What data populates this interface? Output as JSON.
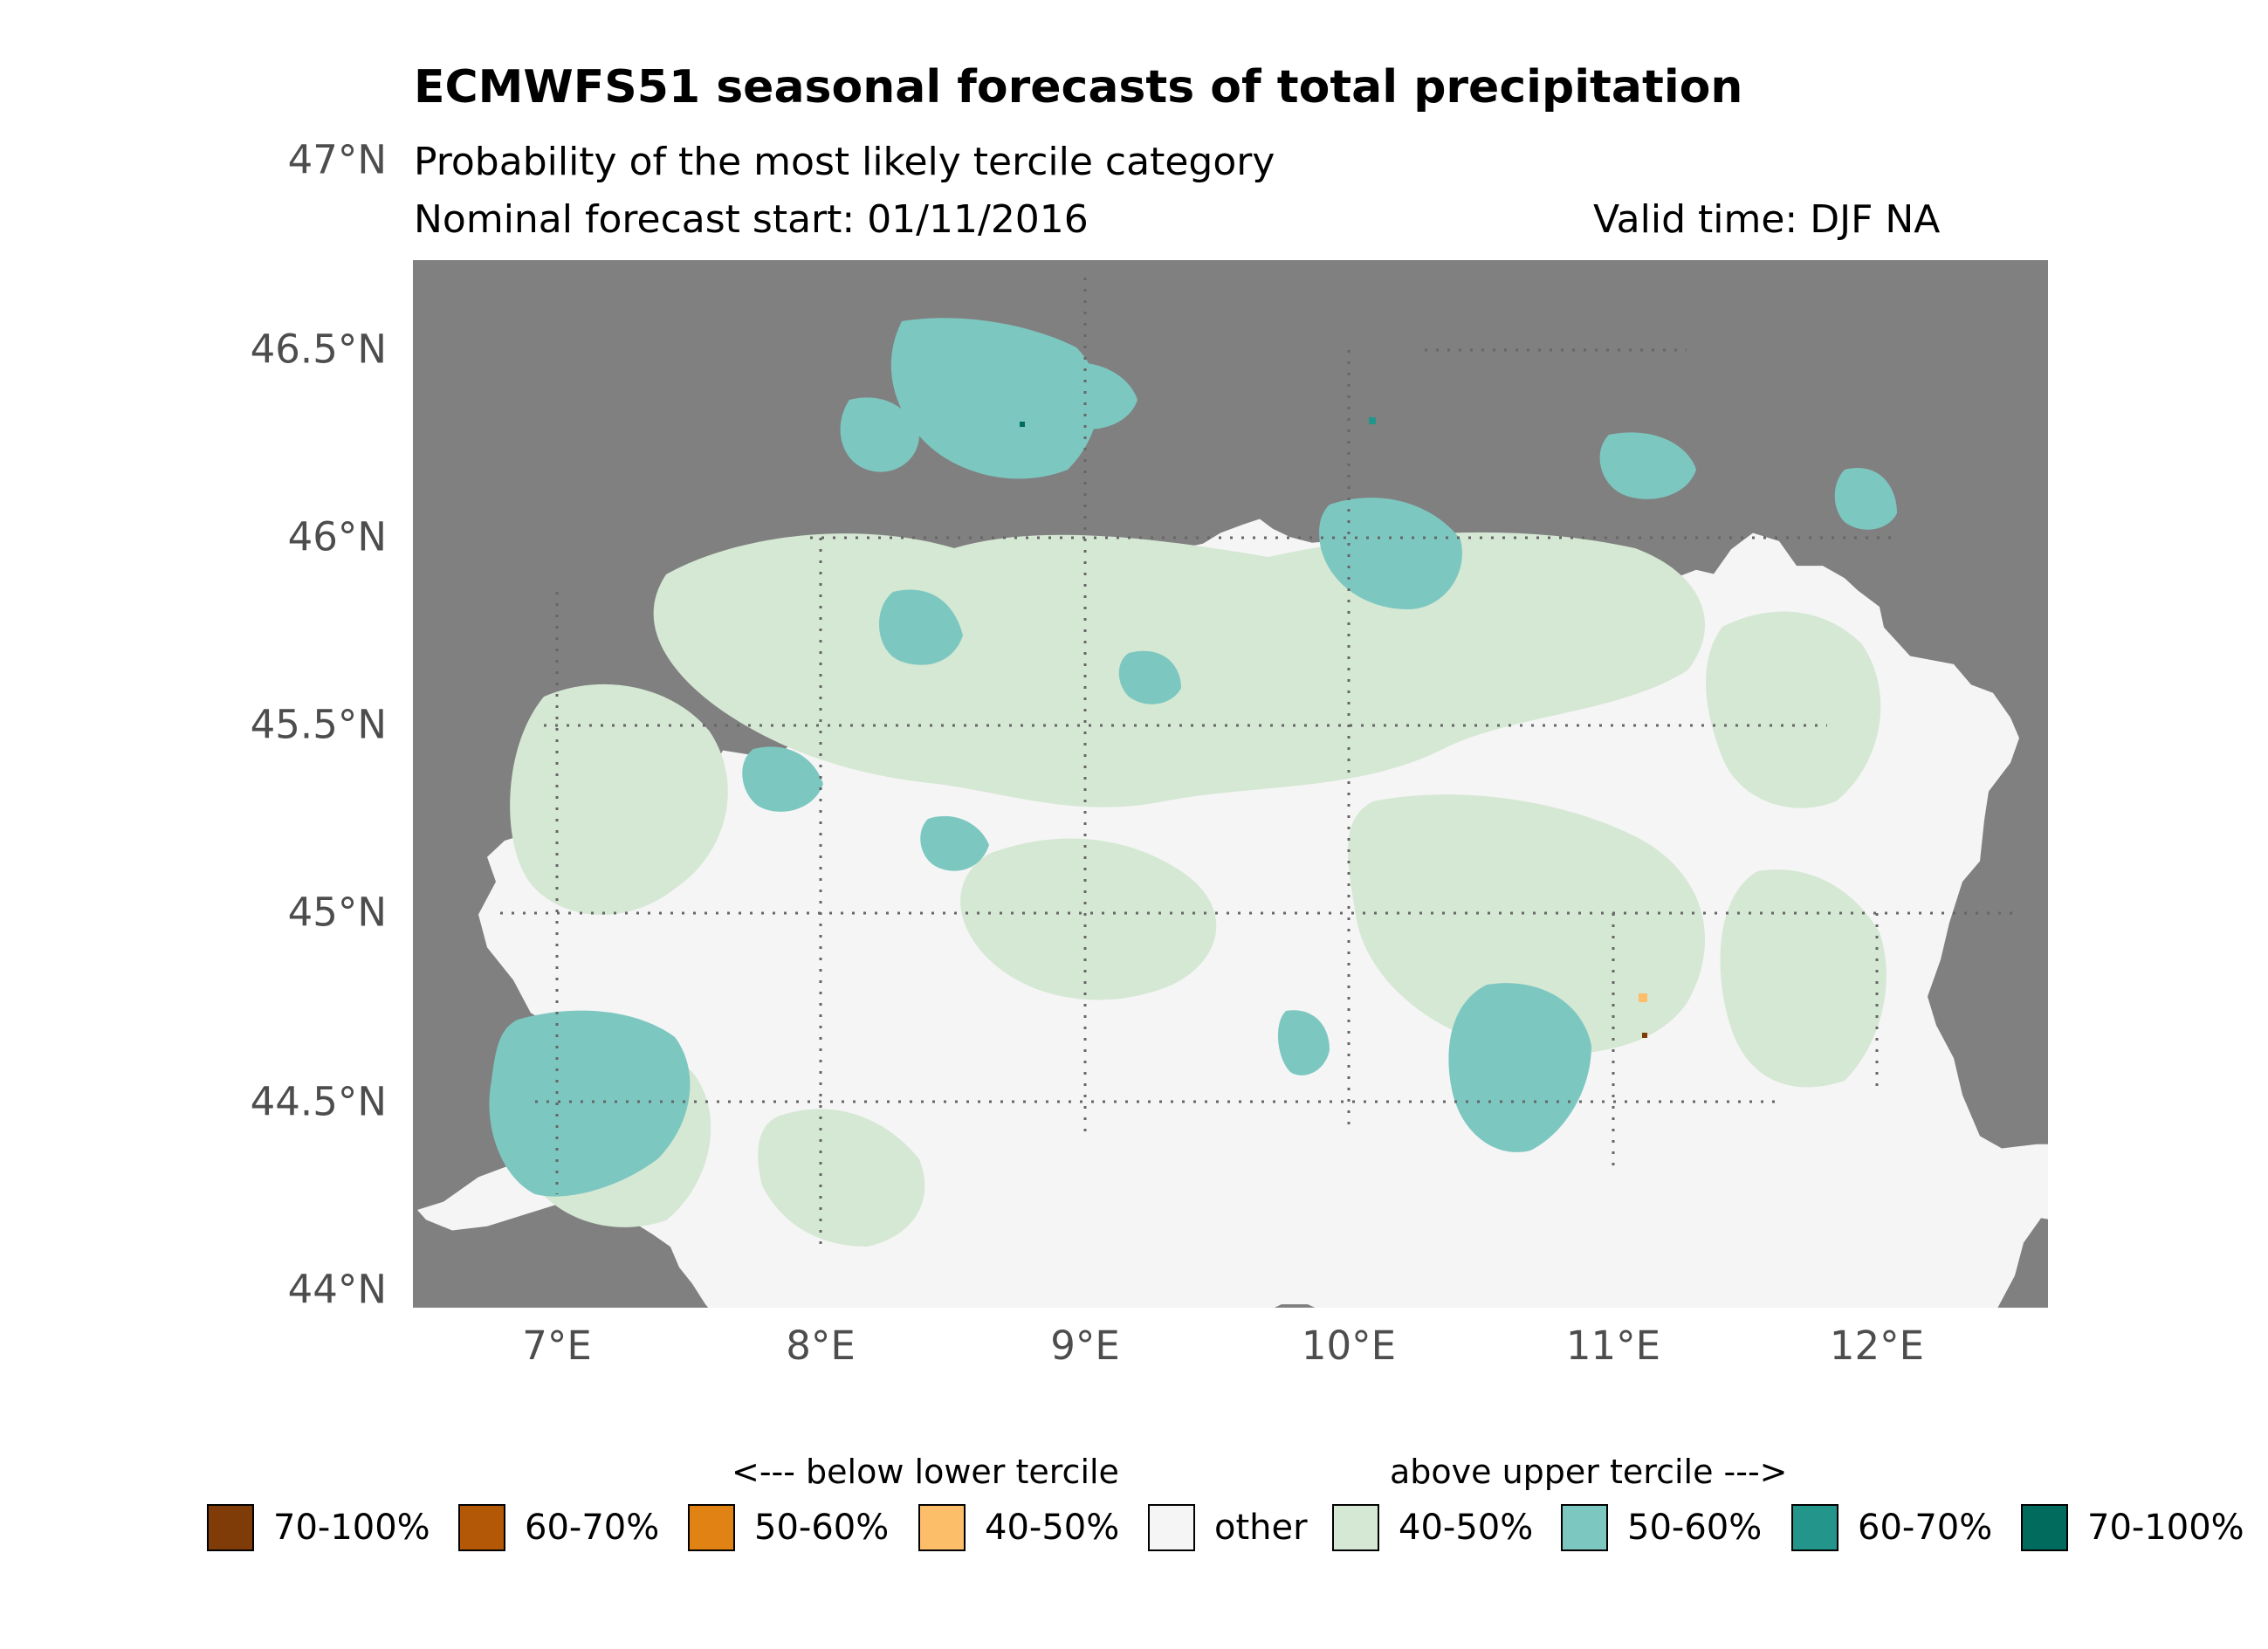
{
  "header": {
    "title": "ECMWFS51 seasonal forecasts of total precipitation",
    "subtitle": "Probability of the most likely tercile category",
    "forecast_start": "Nominal forecast start: 01/11/2016",
    "valid_time": "Valid time: DJF NA"
  },
  "axes": {
    "lat_labels": [
      "47°N",
      "46.5°N",
      "46°N",
      "45.5°N",
      "45°N",
      "44.5°N",
      "44°N"
    ],
    "lon_labels": [
      "7°E",
      "8°E",
      "9°E",
      "10°E",
      "11°E",
      "12°E"
    ],
    "lat_range": [
      44.0,
      46.72
    ],
    "lon_range": [
      6.45,
      12.65
    ]
  },
  "colors": {
    "background_sea": "#808080",
    "other": "#f5f5f5",
    "above_40_50": "#d5e8d4",
    "above_50_60": "#7dc7c1",
    "above_60_70": "#24958a",
    "above_70_100": "#016b5e",
    "below_40_50": "#fdbe6a",
    "below_50_60": "#e08214",
    "below_60_70": "#b35806",
    "below_70_100": "#7f3b08"
  },
  "legend": {
    "below_heading": "<--- below lower tercile",
    "above_heading": "above upper tercile --->",
    "items": [
      {
        "label": "70-100%",
        "color": "#7f3b08"
      },
      {
        "label": "60-70%",
        "color": "#b35806"
      },
      {
        "label": "50-60%",
        "color": "#e08214"
      },
      {
        "label": "40-50%",
        "color": "#fdbe6a"
      },
      {
        "label": "other",
        "color": "#f5f5f5"
      },
      {
        "label": "40-50%",
        "color": "#d5e8d4"
      },
      {
        "label": "50-60%",
        "color": "#7dc7c1"
      },
      {
        "label": "60-70%",
        "color": "#24958a"
      },
      {
        "label": "70-100%",
        "color": "#016b5e"
      }
    ]
  }
}
